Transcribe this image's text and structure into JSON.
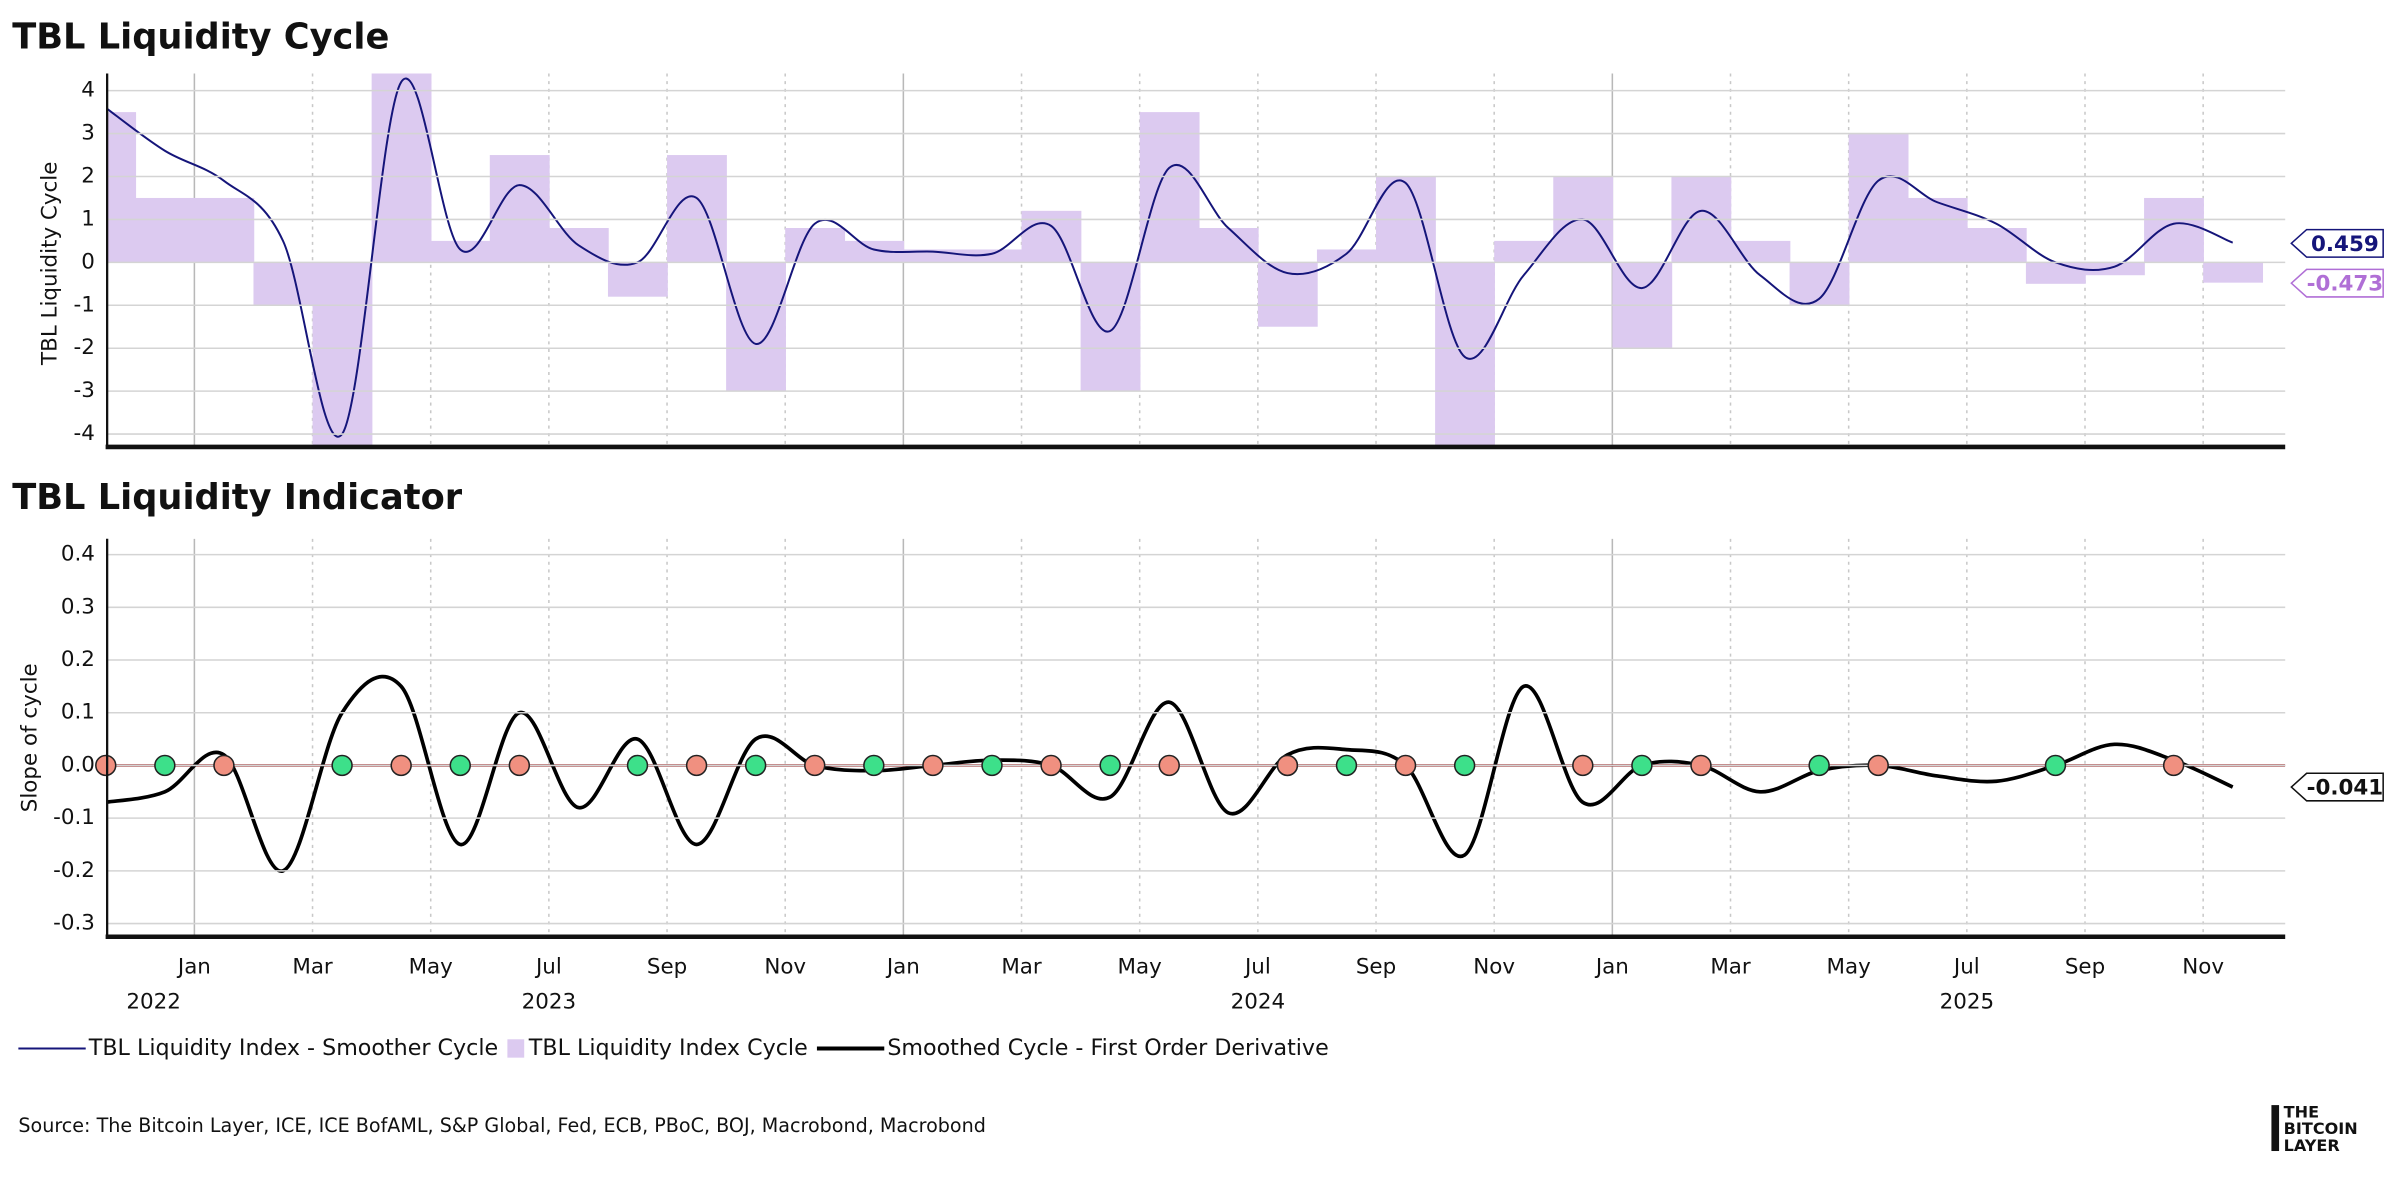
{
  "chart_data": [
    {
      "type": "combo",
      "title": "TBL Liquidity Cycle",
      "y_label": "TBL Liquidity Cycle",
      "x": [
        "2022-11",
        "2022-12",
        "2023-01",
        "2023-02",
        "2023-03",
        "2023-04",
        "2023-05",
        "2023-06",
        "2023-07",
        "2023-08",
        "2023-09",
        "2023-10",
        "2023-11",
        "2023-12",
        "2024-01",
        "2024-02",
        "2024-03",
        "2024-04",
        "2024-05",
        "2024-06",
        "2024-07",
        "2024-08",
        "2024-09",
        "2024-10",
        "2024-11",
        "2024-12",
        "2025-01",
        "2025-02",
        "2025-03",
        "2025-04",
        "2025-05",
        "2025-06",
        "2025-07",
        "2025-08",
        "2025-09",
        "2025-10",
        "2025-11"
      ],
      "ylim": [
        -4.3,
        4.4
      ],
      "yticks": [
        -4,
        -3,
        -2,
        -1,
        0,
        1,
        2,
        3,
        4
      ],
      "grid": true,
      "series": [
        {
          "name": "TBL Liquidity Index - Smoother Cycle",
          "kind": "line",
          "color": "#15157a",
          "values": [
            3.6,
            2.6,
            1.9,
            0.5,
            -4.0,
            4.2,
            0.3,
            1.8,
            0.4,
            0.0,
            1.5,
            -1.9,
            0.9,
            0.3,
            0.25,
            0.2,
            0.85,
            -1.6,
            2.2,
            0.8,
            -0.25,
            0.2,
            1.85,
            -2.2,
            -0.3,
            1.0,
            -0.6,
            1.2,
            -0.3,
            -0.85,
            1.9,
            1.4,
            0.9,
            0.0,
            -0.1,
            0.9,
            0.459
          ]
        },
        {
          "name": "TBL Liquidity Index Cycle",
          "kind": "area",
          "color": "#dccaf0",
          "label_color": "#b06fd6",
          "values": [
            3.5,
            1.5,
            1.5,
            -1.0,
            -4.3,
            4.4,
            0.5,
            2.5,
            0.8,
            -0.8,
            2.5,
            -3.0,
            0.8,
            0.5,
            0.3,
            0.3,
            1.2,
            -3.0,
            3.5,
            0.8,
            -1.5,
            0.3,
            2.0,
            -4.3,
            0.5,
            2.0,
            -2.0,
            2.0,
            0.5,
            -1.0,
            3.0,
            1.5,
            0.8,
            -0.5,
            -0.3,
            1.5,
            -0.473
          ]
        }
      ]
    },
    {
      "type": "line",
      "title": "TBL Liquidity Indicator",
      "y_label": "Slope of cycle",
      "x": [
        "2022-11",
        "2022-12",
        "2023-01",
        "2023-02",
        "2023-03",
        "2023-04",
        "2023-05",
        "2023-06",
        "2023-07",
        "2023-08",
        "2023-09",
        "2023-10",
        "2023-11",
        "2023-12",
        "2024-01",
        "2024-02",
        "2024-03",
        "2024-04",
        "2024-05",
        "2024-06",
        "2024-07",
        "2024-08",
        "2024-09",
        "2024-10",
        "2024-11",
        "2024-12",
        "2025-01",
        "2025-02",
        "2025-03",
        "2025-04",
        "2025-05",
        "2025-06",
        "2025-07",
        "2025-08",
        "2025-09",
        "2025-10",
        "2025-11"
      ],
      "ylim": [
        -0.325,
        0.43
      ],
      "yticks": [
        -0.3,
        -0.2,
        -0.1,
        {
          "value": 0,
          "label": "0.0"
        },
        0.1,
        0.2,
        0.3,
        0.4
      ],
      "grid": true,
      "xticks": [
        {
          "value": "2023-01",
          "label": "Jan"
        },
        {
          "value": "2023-03",
          "label": "Mar"
        },
        {
          "value": "2023-05",
          "label": "May"
        },
        {
          "value": "2023-07",
          "label": "Jul"
        },
        {
          "value": "2023-09",
          "label": "Sep"
        },
        {
          "value": "2023-11",
          "label": "Nov"
        },
        {
          "value": "2024-01",
          "label": "Jan"
        },
        {
          "value": "2024-03",
          "label": "Mar"
        },
        {
          "value": "2024-05",
          "label": "May"
        },
        {
          "value": "2024-07",
          "label": "Jul"
        },
        {
          "value": "2024-09",
          "label": "Sep"
        },
        {
          "value": "2024-11",
          "label": "Nov"
        },
        {
          "value": "2025-01",
          "label": "Jan"
        },
        {
          "value": "2025-03",
          "label": "Mar"
        },
        {
          "value": "2025-05",
          "label": "May"
        },
        {
          "value": "2025-07",
          "label": "Jul"
        },
        {
          "value": "2025-09",
          "label": "Sep"
        },
        {
          "value": "2025-11",
          "label": "Nov"
        }
      ],
      "year_labels": [
        {
          "value": "2022-12",
          "label": "2022"
        },
        {
          "value": "2023-07",
          "label": "2023"
        },
        {
          "value": "2024-07",
          "label": "2024"
        },
        {
          "value": "2025-07",
          "label": "2025"
        }
      ],
      "zero_line_color": "#8b0000",
      "series": [
        {
          "name": "Smoothed Cycle - First Order Derivative",
          "kind": "line",
          "color": "#000000",
          "values": [
            -0.07,
            -0.05,
            0.02,
            -0.2,
            0.1,
            0.15,
            -0.15,
            0.1,
            -0.08,
            0.05,
            -0.15,
            0.05,
            0.0,
            -0.01,
            0.0,
            0.01,
            0.0,
            -0.06,
            0.12,
            -0.09,
            0.02,
            0.03,
            0.0,
            -0.17,
            0.15,
            -0.07,
            0.0,
            0.0,
            -0.05,
            -0.01,
            0.0,
            -0.02,
            -0.03,
            0.0,
            0.04,
            0.01,
            -0.041
          ]
        }
      ],
      "markers": {
        "x": [
          "2022-11",
          "2022-12",
          "2023-01",
          "2023-03",
          "2023-04",
          "2023-05",
          "2023-06",
          "2023-08",
          "2023-09",
          "2023-10",
          "2023-11",
          "2023-12",
          "2024-01",
          "2024-02",
          "2024-03",
          "2024-04",
          "2024-05",
          "2024-07",
          "2024-07",
          "2024-08",
          "2024-09",
          "2024-10",
          "2024-12",
          "2025-01",
          "2025-02",
          "2025-04",
          "2025-05",
          "2025-08",
          "2025-10"
        ],
        "values": [
          0,
          0,
          0,
          0,
          0,
          0,
          0,
          0,
          0,
          0,
          0,
          0,
          0,
          0,
          0,
          0,
          0,
          0,
          0,
          0,
          0,
          0,
          0,
          0,
          0,
          0,
          0,
          0,
          0
        ],
        "colors": [
          "#f09080",
          "#3de08a",
          "#f09080",
          "#3de08a",
          "#f09080",
          "#3de08a",
          "#f09080",
          "#3de08a",
          "#f09080",
          "#3de08a",
          "#f09080",
          "#3de08a",
          "#f09080",
          "#3de08a",
          "#f09080",
          "#3de08a",
          "#f09080",
          "#3de08a",
          "#f09080",
          "#3de08a",
          "#f09080",
          "#3de08a",
          "#f09080",
          "#3de08a",
          "#f09080",
          "#3de08a",
          "#f09080",
          "#3de08a",
          "#f09080"
        ]
      }
    }
  ],
  "source": "Source: The Bitcoin Layer, ICE, ICE BofAML, S&P Global, Fed, ECB, PBoC, BOJ, Macrobond, Macrobond",
  "logo": [
    "THE",
    "BITCOIN",
    "LAYER"
  ]
}
